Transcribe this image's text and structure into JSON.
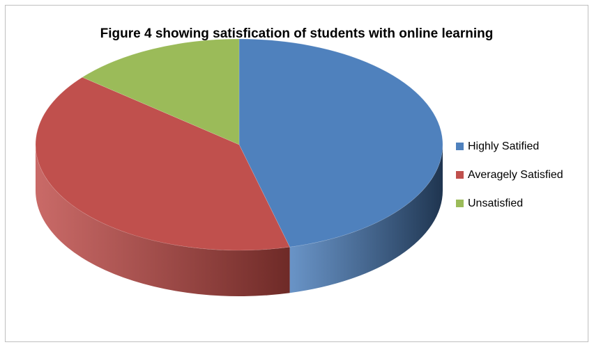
{
  "chart_data": {
    "type": "pie",
    "title": "Figure 4 showing satisfication of students with online learning",
    "categories": [
      "Highly Satified",
      "Averagely Satisfied",
      "Unsatisfied"
    ],
    "values": [
      46,
      40,
      14
    ],
    "colors": [
      "#4f81bd",
      "#c0504d",
      "#9bbb59"
    ],
    "side_colors": [
      "#1f3550",
      "#6e2a27",
      "#5b7030"
    ],
    "style": "3d",
    "legend_position": "right"
  }
}
